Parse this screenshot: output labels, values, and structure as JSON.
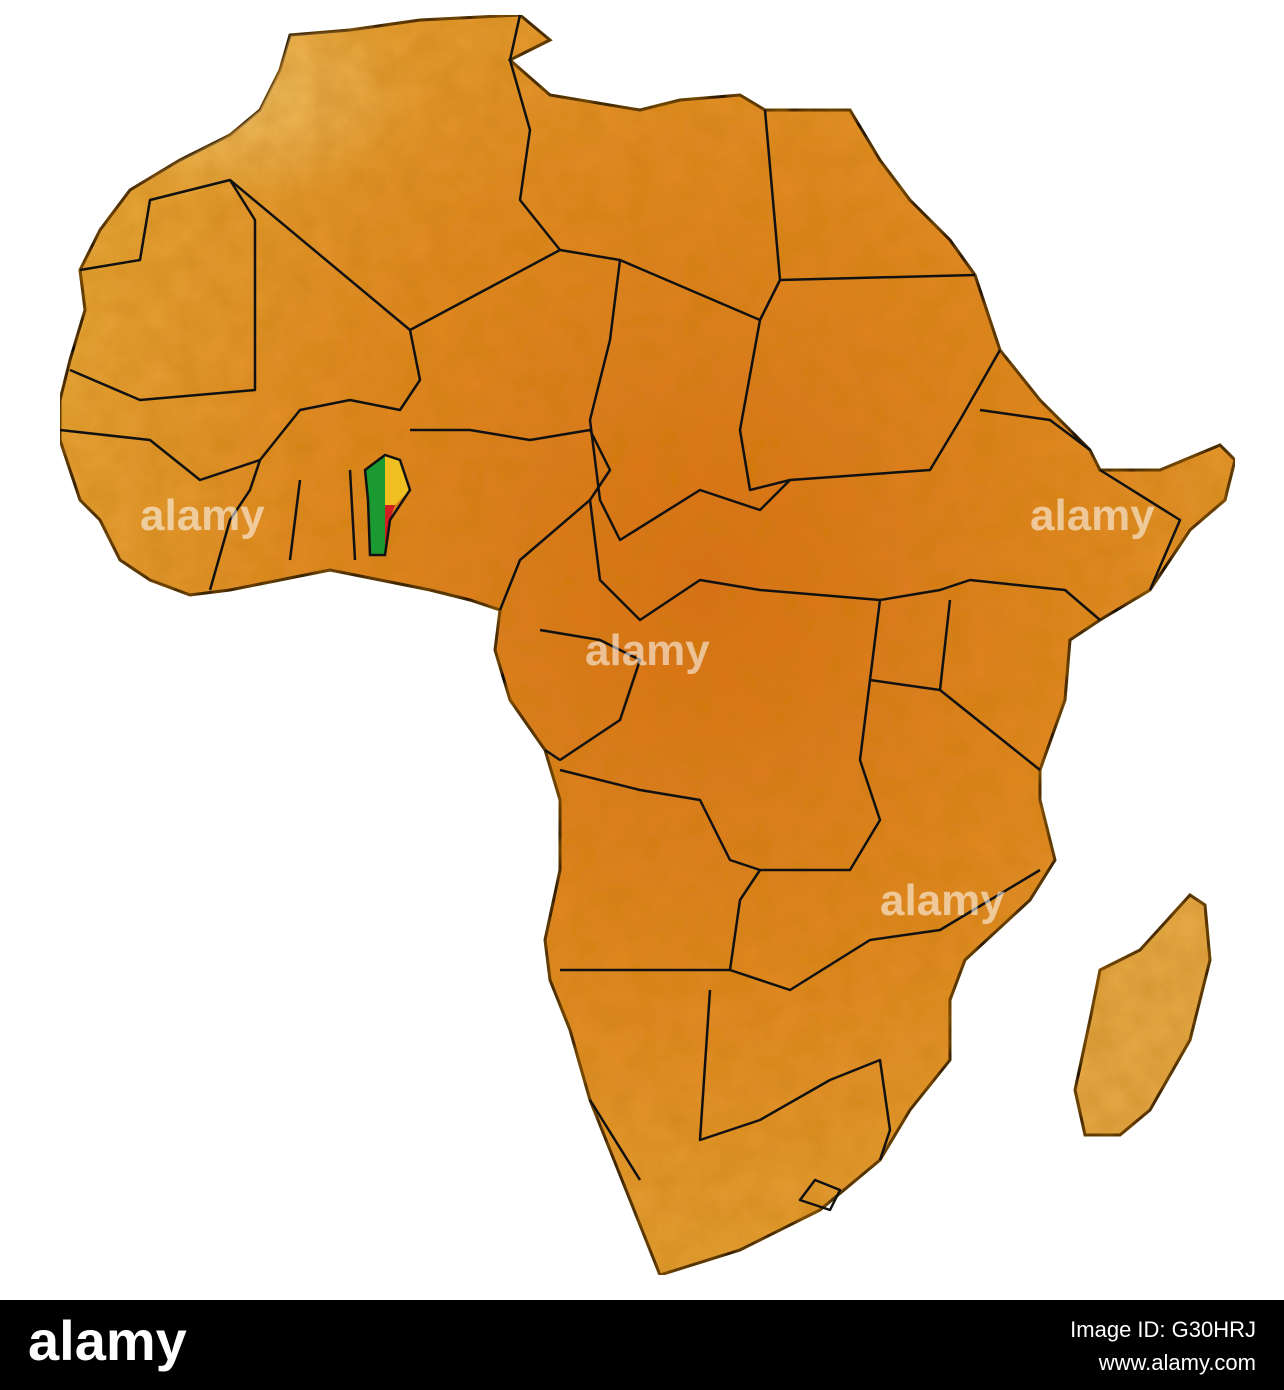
{
  "watermark": "alamy",
  "footer": {
    "brand": "alamy",
    "image_id": "Image ID: G30HRJ",
    "url": "www.alamy.com"
  }
}
